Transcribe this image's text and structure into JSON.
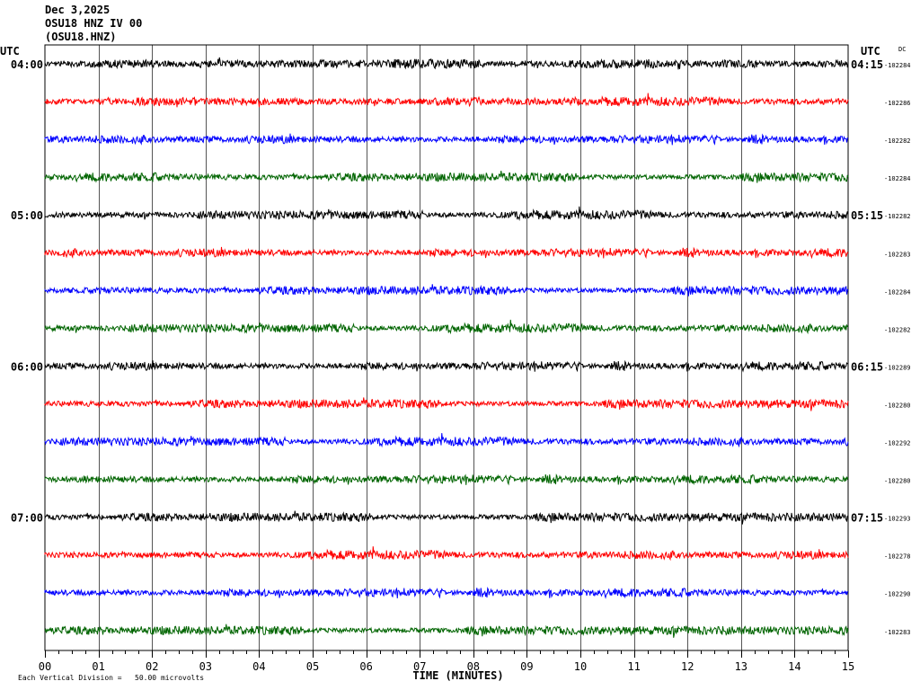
{
  "header": {
    "date": "Dec 3,2025",
    "station": "OSU18 HNZ IV 00",
    "channel": "(OSU18.HNZ)"
  },
  "chart_data": {
    "type": "line",
    "subtype": "helicorder",
    "left_axis_title": "UTC",
    "right_axis_title": "UTC",
    "dc_label": "DC",
    "xlabel": "TIME (MINUTES)",
    "xlim": [
      0,
      15
    ],
    "x_ticks": [
      "00",
      "01",
      "02",
      "03",
      "04",
      "05",
      "06",
      "07",
      "08",
      "09",
      "10",
      "11",
      "12",
      "13",
      "14",
      "15"
    ],
    "grid": "vertical lines every minute",
    "footer": "Each Vertical Division =   50.00 microvolts",
    "trace_colors": [
      "#000000",
      "#ff0000",
      "#0000ff",
      "#006400"
    ],
    "rows": [
      {
        "left": "04:00",
        "right": "04:15",
        "dc": "-102284"
      },
      {
        "left": "",
        "right": "",
        "dc": "-102286"
      },
      {
        "left": "",
        "right": "",
        "dc": "-102282"
      },
      {
        "left": "",
        "right": "",
        "dc": "-102284"
      },
      {
        "left": "05:00",
        "right": "05:15",
        "dc": "-102282"
      },
      {
        "left": "",
        "right": "",
        "dc": "-102283"
      },
      {
        "left": "",
        "right": "",
        "dc": "-102284"
      },
      {
        "left": "",
        "right": "",
        "dc": "-102282"
      },
      {
        "left": "06:00",
        "right": "06:15",
        "dc": "-102289"
      },
      {
        "left": "",
        "right": "",
        "dc": "-102280"
      },
      {
        "left": "",
        "right": "",
        "dc": "-102292"
      },
      {
        "left": "",
        "right": "",
        "dc": "-102280"
      },
      {
        "left": "07:00",
        "right": "07:15",
        "dc": "-102293"
      },
      {
        "left": "",
        "right": "",
        "dc": "-102278"
      },
      {
        "left": "",
        "right": "",
        "dc": "-102290"
      },
      {
        "left": "",
        "right": "",
        "dc": "-102283"
      }
    ]
  }
}
